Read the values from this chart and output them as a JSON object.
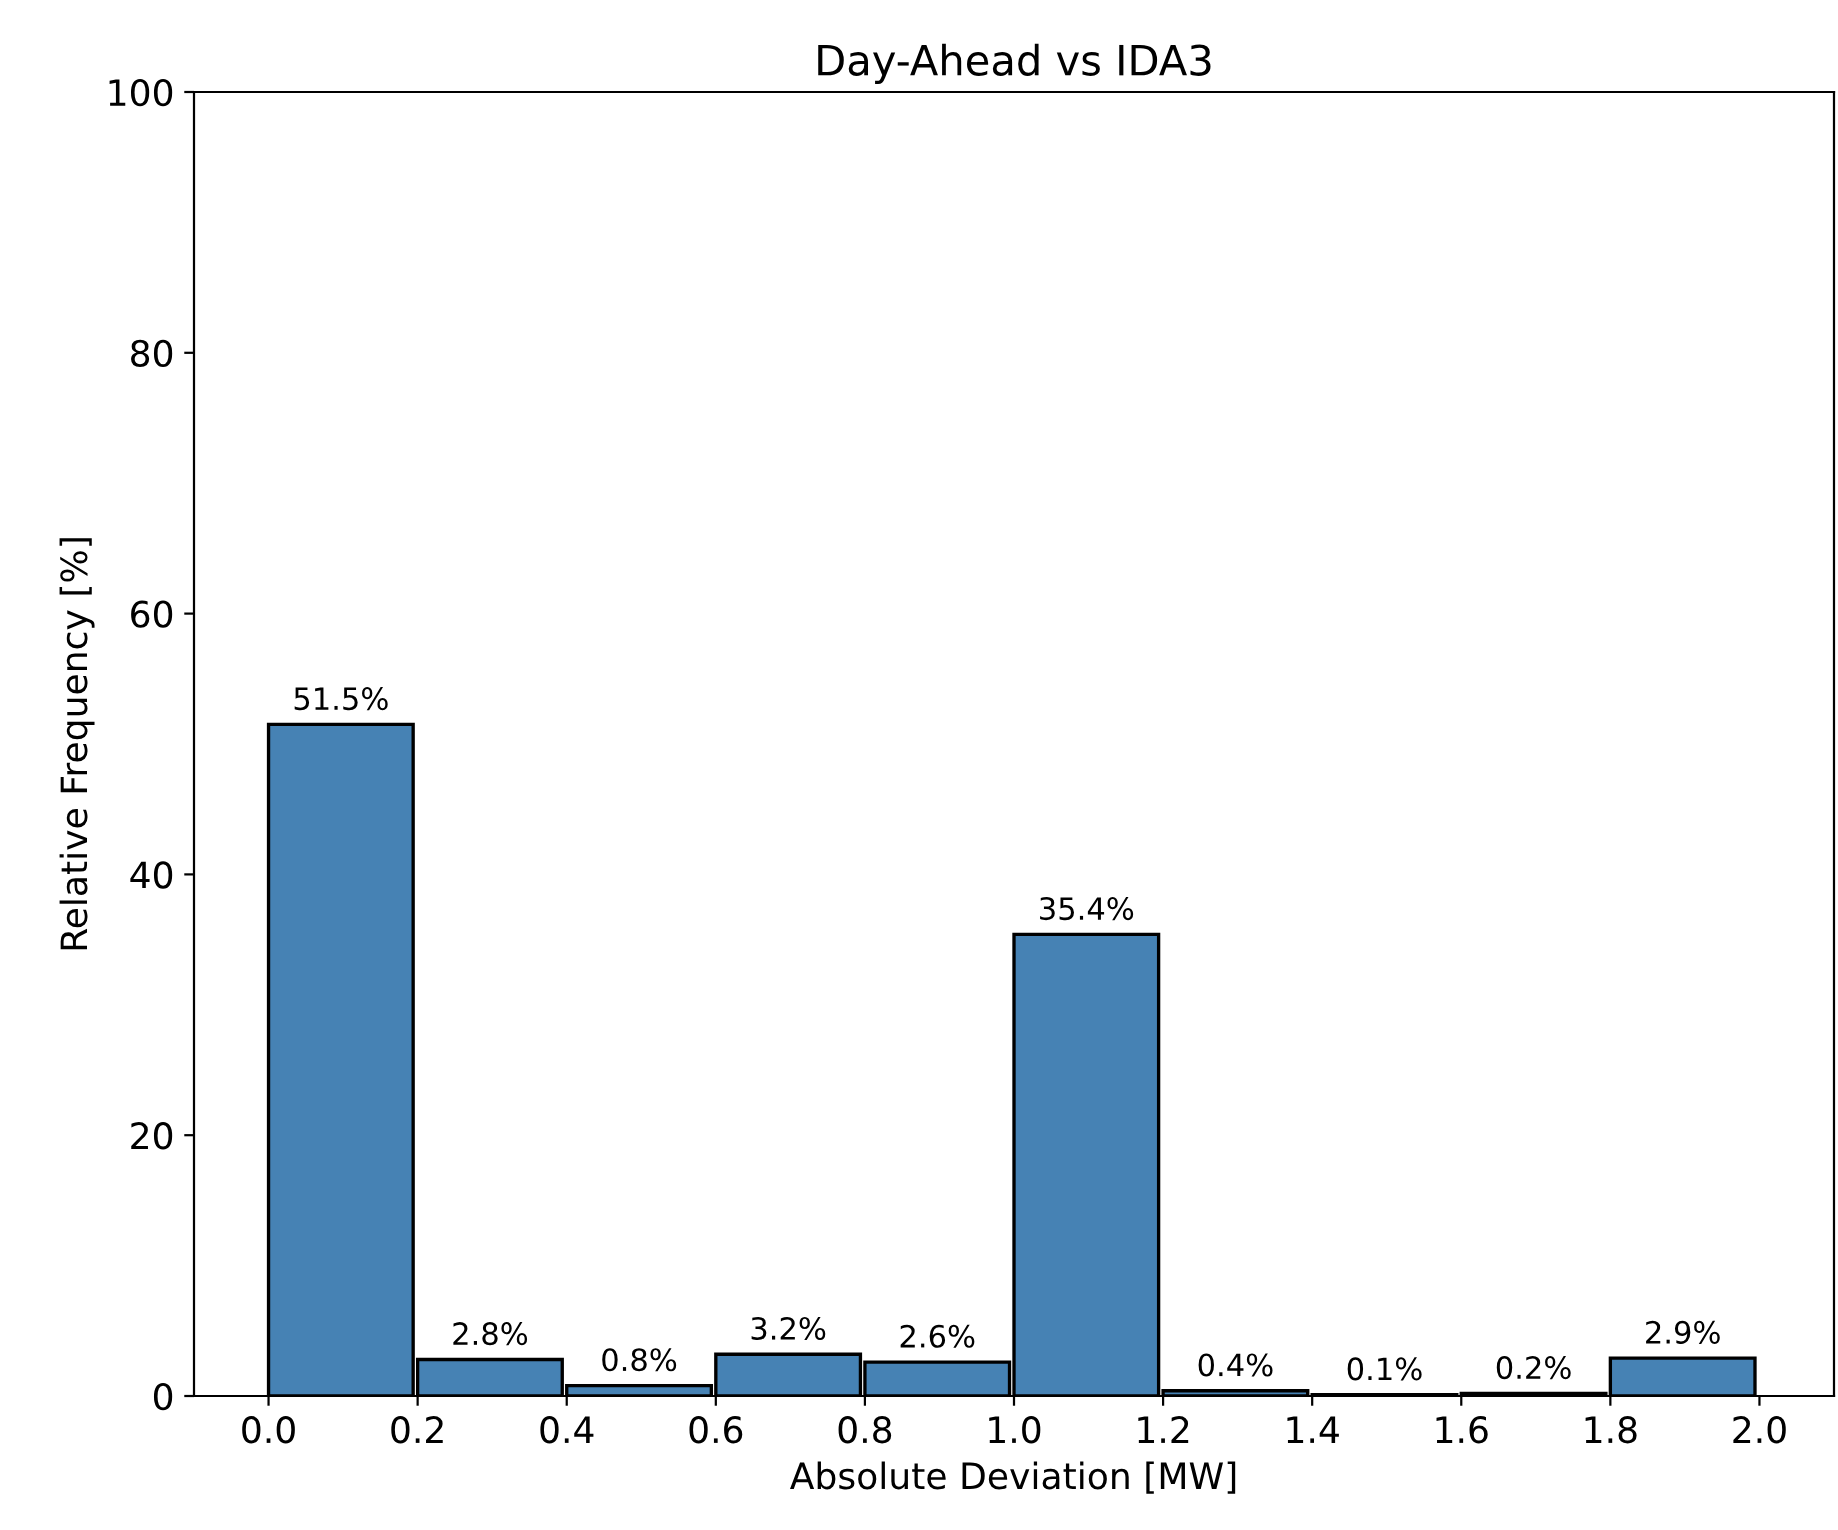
{
  "chart_data": {
    "type": "histogram",
    "title": "Day-Ahead vs IDA3",
    "xlabel": "Absolute Deviation [MW]",
    "ylabel": "Relative Frequency [%]",
    "bins": [
      0.0,
      0.2,
      0.4,
      0.6,
      0.8,
      1.0,
      1.2,
      1.4,
      1.6,
      1.8,
      2.0
    ],
    "values": [
      51.5,
      2.8,
      0.8,
      3.2,
      2.6,
      35.4,
      0.4,
      0.1,
      0.2,
      2.9
    ],
    "value_labels": [
      "51.5%",
      "2.8%",
      "0.8%",
      "3.2%",
      "2.6%",
      "35.4%",
      "0.4%",
      "0.1%",
      "0.2%",
      "2.9%"
    ],
    "color": "#4682b4",
    "xlim": [
      -0.1,
      2.1
    ],
    "ylim": [
      0,
      100
    ],
    "xticks": [
      {
        "value": 0.0,
        "label": "0.0"
      },
      {
        "value": 0.2,
        "label": "0.2"
      },
      {
        "value": 0.4,
        "label": "0.4"
      },
      {
        "value": 0.6,
        "label": "0.6"
      },
      {
        "value": 0.8,
        "label": "0.8"
      },
      {
        "value": 1.0,
        "label": "1.0"
      },
      {
        "value": 1.2,
        "label": "1.2"
      },
      {
        "value": 1.4,
        "label": "1.4"
      },
      {
        "value": 1.6,
        "label": "1.6"
      },
      {
        "value": 1.8,
        "label": "1.8"
      },
      {
        "value": 2.0,
        "label": "2.0"
      }
    ],
    "yticks": [
      0,
      20,
      40,
      60,
      80,
      100
    ],
    "grid": false
  }
}
